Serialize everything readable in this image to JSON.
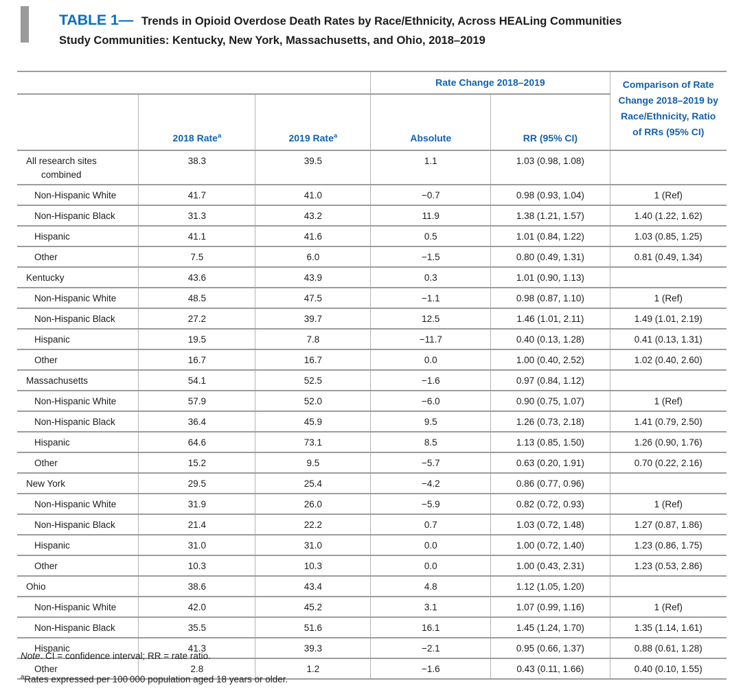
{
  "title": {
    "label": "TABLE 1—",
    "text": "Trends in Opioid Overdose Death Rates by Race/Ethnicity, Across HEALing Communities Study Communities: Kentucky, New York, Massachusetts, and Ohio, 2018–2019"
  },
  "colors": {
    "accent_blue": "#0d6fbe",
    "header_blue": "#1261ac",
    "ink": "#1c1c1c",
    "grid_horizontal": "#9c9c9c",
    "grid_vertical": "#b3b3b3",
    "bar_gray": "#9a9a9a"
  },
  "table": {
    "header": {
      "group": "Rate Change 2018–2019",
      "comparison": "Comparison of Rate Change 2018–2019 by Race/Ethnicity, Ratio of RRs (95% CI)",
      "rate2018": "2018 Rate",
      "rate2019": "2019 Rate",
      "sup": "a",
      "absolute": "Absolute",
      "rr": "RR (95% CI)"
    },
    "rows": [
      {
        "label": "All research sites combined",
        "indent": false,
        "cells": [
          "38.3",
          "39.5",
          "1.1",
          "1.03 (0.98, 1.08)",
          ""
        ]
      },
      {
        "label": "Non-Hispanic White",
        "indent": true,
        "cells": [
          "41.7",
          "41.0",
          "−0.7",
          "0.98 (0.93, 1.04)",
          "1 (Ref)"
        ]
      },
      {
        "label": "Non-Hispanic Black",
        "indent": true,
        "cells": [
          "31.3",
          "43.2",
          "11.9",
          "1.38 (1.21, 1.57)",
          "1.40 (1.22, 1.62)"
        ]
      },
      {
        "label": "Hispanic",
        "indent": true,
        "cells": [
          "41.1",
          "41.6",
          "0.5",
          "1.01 (0.84, 1.22)",
          "1.03 (0.85, 1.25)"
        ]
      },
      {
        "label": "Other",
        "indent": true,
        "cells": [
          "7.5",
          "6.0",
          "−1.5",
          "0.80 (0.49, 1.31)",
          "0.81 (0.49, 1.34)"
        ]
      },
      {
        "label": "Kentucky",
        "indent": false,
        "cells": [
          "43.6",
          "43.9",
          "0.3",
          "1.01 (0.90, 1.13)",
          ""
        ]
      },
      {
        "label": "Non-Hispanic White",
        "indent": true,
        "cells": [
          "48.5",
          "47.5",
          "−1.1",
          "0.98 (0.87, 1.10)",
          "1 (Ref)"
        ]
      },
      {
        "label": "Non-Hispanic Black",
        "indent": true,
        "cells": [
          "27.2",
          "39.7",
          "12.5",
          "1.46 (1.01, 2.11)",
          "1.49 (1.01, 2.19)"
        ]
      },
      {
        "label": "Hispanic",
        "indent": true,
        "cells": [
          "19.5",
          "7.8",
          "−11.7",
          "0.40 (0.13, 1.28)",
          "0.41 (0.13, 1.31)"
        ]
      },
      {
        "label": "Other",
        "indent": true,
        "cells": [
          "16.7",
          "16.7",
          "0.0",
          "1.00 (0.40, 2.52)",
          "1.02 (0.40, 2.60)"
        ]
      },
      {
        "label": "Massachusetts",
        "indent": false,
        "cells": [
          "54.1",
          "52.5",
          "−1.6",
          "0.97 (0.84, 1.12)",
          ""
        ]
      },
      {
        "label": "Non-Hispanic White",
        "indent": true,
        "cells": [
          "57.9",
          "52.0",
          "−6.0",
          "0.90 (0.75, 1.07)",
          "1 (Ref)"
        ]
      },
      {
        "label": "Non-Hispanic Black",
        "indent": true,
        "cells": [
          "36.4",
          "45.9",
          "9.5",
          "1.26 (0.73, 2.18)",
          "1.41 (0.79, 2.50)"
        ]
      },
      {
        "label": "Hispanic",
        "indent": true,
        "cells": [
          "64.6",
          "73.1",
          "8.5",
          "1.13 (0.85, 1.50)",
          "1.26 (0.90, 1.76)"
        ]
      },
      {
        "label": "Other",
        "indent": true,
        "cells": [
          "15.2",
          "9.5",
          "−5.7",
          "0.63 (0.20, 1.91)",
          "0.70 (0.22, 2.16)"
        ]
      },
      {
        "label": "New York",
        "indent": false,
        "cells": [
          "29.5",
          "25.4",
          "−4.2",
          "0.86 (0.77, 0.96)",
          ""
        ]
      },
      {
        "label": "Non-Hispanic White",
        "indent": true,
        "cells": [
          "31.9",
          "26.0",
          "−5.9",
          "0.82 (0.72, 0.93)",
          "1 (Ref)"
        ]
      },
      {
        "label": "Non-Hispanic Black",
        "indent": true,
        "cells": [
          "21.4",
          "22.2",
          "0.7",
          "1.03 (0.72, 1.48)",
          "1.27 (0.87, 1.86)"
        ]
      },
      {
        "label": "Hispanic",
        "indent": true,
        "cells": [
          "31.0",
          "31.0",
          "0.0",
          "1.00 (0.72, 1.40)",
          "1.23 (0.86, 1.75)"
        ]
      },
      {
        "label": "Other",
        "indent": true,
        "cells": [
          "10.3",
          "10.3",
          "0.0",
          "1.00 (0.43, 2.31)",
          "1.23 (0.53, 2.86)"
        ]
      },
      {
        "label": "Ohio",
        "indent": false,
        "cells": [
          "38.6",
          "43.4",
          "4.8",
          "1.12 (1.05, 1.20)",
          ""
        ]
      },
      {
        "label": "Non-Hispanic White",
        "indent": true,
        "cells": [
          "42.0",
          "45.2",
          "3.1",
          "1.07 (0.99, 1.16)",
          "1 (Ref)"
        ]
      },
      {
        "label": "Non-Hispanic Black",
        "indent": true,
        "cells": [
          "35.5",
          "51.6",
          "16.1",
          "1.45 (1.24, 1.70)",
          "1.35 (1.14, 1.61)"
        ]
      },
      {
        "label": "Hispanic",
        "indent": true,
        "cells": [
          "41.3",
          "39.3",
          "−2.1",
          "0.95 (0.66, 1.37)",
          "0.88 (0.61, 1.28)"
        ]
      },
      {
        "label": "Other",
        "indent": true,
        "cells": [
          "2.8",
          "1.2",
          "−1.6",
          "0.43 (0.11, 1.66)",
          "0.40 (0.10, 1.55)"
        ]
      }
    ]
  },
  "footnotes": {
    "note_label": "Note",
    "note_text": ". CI = confidence interval; RR = rate ratio.",
    "a_sup": "a",
    "a_text": "Rates expressed per 100 000 population aged 18 years or older."
  }
}
